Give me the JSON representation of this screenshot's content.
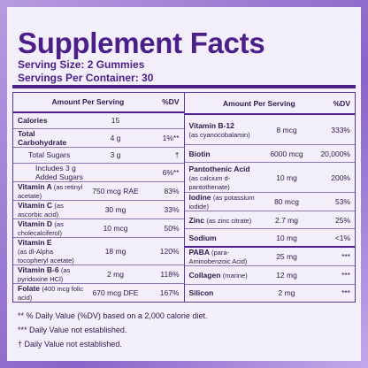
{
  "title": "Supplement Facts",
  "serving_size": "Serving Size: 2 Gummies",
  "servings_per_container": "Servings Per Container: 30",
  "left": {
    "header": {
      "amount": "Amount Per Serving",
      "dv": "%DV"
    },
    "rows": [
      {
        "name": "Calories",
        "amount": "15"
      },
      {
        "name": "Total Carbohydrate",
        "amount": "4 g",
        "dv": "1%**"
      },
      {
        "name": "Total Sugars",
        "amount": "3 g",
        "dv": "†"
      },
      {
        "name": "Includes 3 g Added Sugars",
        "dv": "6%**"
      },
      {
        "name": "Vitamin A",
        "note": "(as retinyl acetate)",
        "amount": "750 mcg RAE",
        "dv": "83%"
      },
      {
        "name": "Vitamin C",
        "note": "(as ascorbic acid)",
        "amount": "30 mg",
        "dv": "33%"
      },
      {
        "name": "Vitamin D",
        "note": "(as cholecalciferol)",
        "amount": "10 mcg",
        "dv": "50%"
      },
      {
        "name": "Vitamin E",
        "note": "(as dl-Alpha tocopheryl acetate)",
        "amount": "18 mg",
        "dv": "120%"
      },
      {
        "name": "Vitamin B-6",
        "note": "(as pyridoxine HCl)",
        "amount": "2 mg",
        "dv": "118%"
      },
      {
        "name": "Folate",
        "note": "(400 mcg folic acid)",
        "amount": "670 mcg DFE",
        "dv": "167%"
      }
    ]
  },
  "right": {
    "header": {
      "amount": "Amount Per Serving",
      "dv": "%DV"
    },
    "rows": [
      {
        "name": "Vitamin B-12",
        "note": "(as cyanocobalamin)",
        "amount": "8 mcg",
        "dv": "333%"
      },
      {
        "name": "Biotin",
        "amount": "6000 mcg",
        "dv": "20,000%"
      },
      {
        "name": "Pantothenic Acid",
        "note": "(as calcium d-pantothenate)",
        "amount": "10 mg",
        "dv": "200%"
      },
      {
        "name": "Iodine",
        "note": "(as potassium iodide)",
        "amount": "80 mcg",
        "dv": "53%"
      },
      {
        "name": "Zinc",
        "note": "(as zinc citrate)",
        "amount": "2.7 mg",
        "dv": "25%"
      },
      {
        "name": "Sodium",
        "amount": "10 mg",
        "dv": "<1%"
      },
      {
        "name": "PABA",
        "note": "(para-Aminobenzoic Acid)",
        "amount": "25 mg",
        "dv": "***"
      },
      {
        "name": "Collagen",
        "note": "(marine)",
        "amount": "12 mg",
        "dv": "***"
      },
      {
        "name": "Silicon",
        "amount": "2 mg",
        "dv": "***"
      }
    ]
  },
  "footnotes": [
    "** % Daily Value (%DV) based on a 2,000 calorie diet.",
    "*** Daily Value not established.",
    "† Daily Value not established."
  ]
}
